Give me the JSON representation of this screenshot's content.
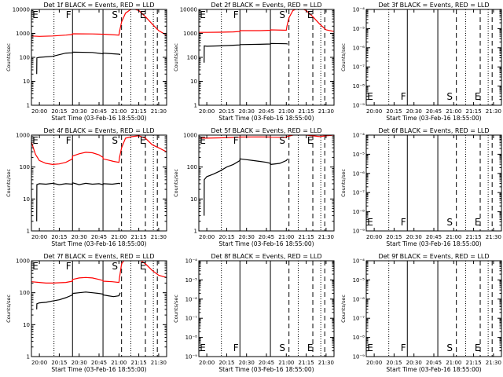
{
  "figure": {
    "x_axis_label": "Start Time (03-Feb-16 18:55:00)",
    "y_axis_label": "Counts/sec",
    "x_ticks": [
      "20:00",
      "20:15",
      "20:30",
      "20:45",
      "21:00",
      "21:15",
      "21:30"
    ],
    "x_tick_minutes": [
      0,
      15,
      30,
      45,
      60,
      75,
      90
    ],
    "x_range_minutes": [
      -6,
      96
    ],
    "x_origin_time": "20:00",
    "colors": {
      "events": "#000000",
      "lld": "#ff0000",
      "solid_line": "#000000"
    },
    "marker_lines_minutes": {
      "solid": [
        25,
        48
      ],
      "dotted": [
        11,
        69,
        86
      ],
      "dashed": [
        62,
        80,
        89
      ]
    }
  },
  "chart_data": [
    {
      "type": "line",
      "title": "Det 1f BLACK = Events, RED = LLD",
      "yscale": "log",
      "ylim": [
        1,
        10000
      ],
      "y_ticks": [
        "1",
        "10",
        "100",
        "1000",
        "10000"
      ],
      "y_tick_values": [
        1,
        10,
        100,
        1000,
        10000
      ],
      "segment_labels": [
        {
          "text": "E",
          "x": -3
        },
        {
          "text": "F",
          "x": 22
        },
        {
          "text": "S",
          "x": 57
        },
        {
          "text": "E",
          "x": 78
        }
      ],
      "series": [
        {
          "color": "#000000",
          "x": [
            -2,
            -1.9,
            0,
            10,
            20,
            25,
            25.1,
            40,
            48,
            48.1,
            60,
            61
          ],
          "y": [
            20,
            95,
            100,
            110,
            150,
            155,
            165,
            160,
            140,
            150,
            135,
            130
          ]
        },
        {
          "color": "#ff0000",
          "x": [
            -6,
            0,
            10,
            20,
            25,
            25.1,
            40,
            48,
            48.1,
            60,
            60.5,
            62,
            65,
            70,
            75,
            80,
            85,
            90,
            96
          ],
          "y": [
            780,
            750,
            780,
            850,
            900,
            960,
            950,
            920,
            930,
            850,
            1200,
            3000,
            7000,
            11000,
            9000,
            5000,
            2500,
            1300,
            850
          ]
        }
      ]
    },
    {
      "type": "line",
      "title": "Det 2f BLACK = Events, RED = LLD",
      "yscale": "log",
      "ylim": [
        1,
        10000
      ],
      "y_ticks": [
        "1",
        "10",
        "100",
        "1000",
        "10000"
      ],
      "y_tick_values": [
        1,
        10,
        100,
        1000,
        10000
      ],
      "segment_labels": [
        {
          "text": "E",
          "x": -3
        },
        {
          "text": "F",
          "x": 22
        },
        {
          "text": "S",
          "x": 57
        },
        {
          "text": "E",
          "x": 78
        }
      ],
      "series": [
        {
          "color": "#000000",
          "x": [
            -2,
            -1.9,
            0,
            10,
            20,
            25,
            25.1,
            40,
            48,
            48.1,
            60,
            61
          ],
          "y": [
            60,
            300,
            290,
            300,
            320,
            330,
            340,
            350,
            360,
            380,
            370,
            360
          ]
        },
        {
          "color": "#ff0000",
          "x": [
            -6,
            0,
            10,
            20,
            25,
            25.1,
            40,
            48,
            48.1,
            60,
            60.5,
            62,
            65,
            70,
            75,
            80,
            85,
            90,
            96
          ],
          "y": [
            1100,
            1100,
            1120,
            1150,
            1200,
            1300,
            1300,
            1350,
            1400,
            1350,
            2000,
            4500,
            9000,
            12000,
            9000,
            5000,
            2500,
            1400,
            1200
          ]
        }
      ]
    },
    {
      "type": "line",
      "title": "Det 3f BLACK = Events, RED = LLD",
      "yscale": "log",
      "ylim": [
        1e-09,
        0.0001
      ],
      "y_ticks": [
        "10⁻⁹",
        "10⁻⁸",
        "10⁻⁷",
        "10⁻⁶",
        "10⁻⁵",
        "10⁻⁴"
      ],
      "y_tick_values": [
        1e-09,
        1e-08,
        1e-07,
        1e-06,
        1e-05,
        0.0001
      ],
      "segment_labels": [
        {
          "text": "E",
          "x": -3
        },
        {
          "text": "F",
          "x": 22
        },
        {
          "text": "S",
          "x": 57
        },
        {
          "text": "E",
          "x": 78
        }
      ],
      "series": []
    },
    {
      "type": "line",
      "title": "Det 4f BLACK = Events, RED = LLD",
      "yscale": "log",
      "ylim": [
        1,
        1000
      ],
      "y_ticks": [
        "1",
        "10",
        "100",
        "1000"
      ],
      "y_tick_values": [
        1,
        10,
        100,
        1000
      ],
      "segment_labels": [
        {
          "text": "E",
          "x": -3
        },
        {
          "text": "F",
          "x": 22
        },
        {
          "text": "S",
          "x": 57
        },
        {
          "text": "E",
          "x": 78
        }
      ],
      "series": [
        {
          "color": "#000000",
          "x": [
            -2,
            -1.9,
            0,
            5,
            10,
            15,
            20,
            25,
            25.1,
            30,
            35,
            40,
            45,
            48,
            48.1,
            55,
            60,
            61
          ],
          "y": [
            2,
            28,
            30,
            29,
            31,
            28,
            30,
            29,
            32,
            28,
            31,
            29,
            30,
            28,
            30,
            29,
            31,
            30
          ]
        },
        {
          "color": "#ff0000",
          "x": [
            -6,
            -3,
            0,
            5,
            10,
            15,
            20,
            25,
            25.1,
            30,
            35,
            40,
            45,
            48,
            48.1,
            52,
            56,
            60,
            60.5,
            62,
            65,
            70,
            75,
            80,
            85,
            90,
            96
          ],
          "y": [
            600,
            250,
            160,
            130,
            120,
            125,
            140,
            180,
            220,
            260,
            290,
            280,
            240,
            200,
            180,
            165,
            150,
            140,
            200,
            400,
            800,
            900,
            950,
            800,
            500,
            400,
            300
          ]
        }
      ]
    },
    {
      "type": "line",
      "title": "Det 5f BLACK = Events, RED = LLD",
      "yscale": "log",
      "ylim": [
        1,
        1000
      ],
      "y_ticks": [
        "1",
        "10",
        "100",
        "1000"
      ],
      "y_tick_values": [
        1,
        10,
        100,
        1000
      ],
      "segment_labels": [
        {
          "text": "E",
          "x": -3
        },
        {
          "text": "F",
          "x": 22
        },
        {
          "text": "S",
          "x": 57
        },
        {
          "text": "E",
          "x": 78
        }
      ],
      "series": [
        {
          "color": "#000000",
          "x": [
            -2,
            -1.9,
            0,
            5,
            10,
            15,
            20,
            25,
            25.1,
            30,
            35,
            40,
            45,
            48,
            48.1,
            55,
            60,
            61
          ],
          "y": [
            3,
            40,
            50,
            60,
            75,
            100,
            120,
            160,
            180,
            170,
            160,
            150,
            140,
            130,
            120,
            130,
            160,
            180
          ]
        },
        {
          "color": "#ff0000",
          "x": [
            -6,
            0,
            10,
            20,
            25,
            25.1,
            40,
            48,
            48.1,
            60,
            60.5,
            65,
            70,
            75,
            80,
            85,
            90,
            96
          ],
          "y": [
            800,
            800,
            820,
            850,
            860,
            870,
            880,
            870,
            860,
            850,
            900,
            1000,
            1100,
            1000,
            950,
            900,
            950,
            1000
          ]
        }
      ]
    },
    {
      "type": "line",
      "title": "Det 6f BLACK = Events, RED = LLD",
      "yscale": "log",
      "ylim": [
        1e-09,
        0.0001
      ],
      "y_ticks": [
        "10⁻⁹",
        "10⁻⁸",
        "10⁻⁷",
        "10⁻⁶",
        "10⁻⁵",
        "10⁻⁴"
      ],
      "y_tick_values": [
        1e-09,
        1e-08,
        1e-07,
        1e-06,
        1e-05,
        0.0001
      ],
      "segment_labels": [
        {
          "text": "E",
          "x": -3
        },
        {
          "text": "F",
          "x": 22
        },
        {
          "text": "S",
          "x": 57
        },
        {
          "text": "E",
          "x": 78
        }
      ],
      "series": []
    },
    {
      "type": "line",
      "title": "Det 7f BLACK = Events, RED = LLD",
      "yscale": "log",
      "ylim": [
        1,
        1000
      ],
      "y_ticks": [
        "1",
        "10",
        "100",
        "1000"
      ],
      "y_tick_values": [
        1,
        10,
        100,
        1000
      ],
      "segment_labels": [
        {
          "text": "E",
          "x": -3
        },
        {
          "text": "F",
          "x": 22
        },
        {
          "text": "S",
          "x": 57
        },
        {
          "text": "E",
          "x": 78
        }
      ],
      "series": [
        {
          "color": "#000000",
          "x": [
            -2,
            -1.9,
            0,
            5,
            10,
            15,
            20,
            25,
            25.1,
            30,
            35,
            40,
            45,
            48,
            48.1,
            52,
            56,
            60,
            61
          ],
          "y": [
            30,
            45,
            48,
            50,
            55,
            60,
            70,
            85,
            95,
            100,
            105,
            100,
            95,
            90,
            85,
            80,
            75,
            80,
            100
          ]
        },
        {
          "color": "#ff0000",
          "x": [
            -6,
            0,
            5,
            10,
            15,
            20,
            25,
            25.1,
            30,
            35,
            40,
            45,
            48,
            48.1,
            55,
            60,
            60.5,
            62,
            65,
            70,
            75,
            80,
            85,
            90,
            96
          ],
          "y": [
            220,
            210,
            200,
            200,
            205,
            210,
            230,
            260,
            290,
            300,
            290,
            260,
            240,
            230,
            220,
            210,
            300,
            800,
            1200,
            1300,
            1100,
            800,
            500,
            350,
            300
          ]
        }
      ]
    },
    {
      "type": "line",
      "title": "Det 8f BLACK = Events, RED = LLD",
      "yscale": "log",
      "ylim": [
        1e-09,
        0.0001
      ],
      "y_ticks": [
        "10⁻⁹",
        "10⁻⁸",
        "10⁻⁷",
        "10⁻⁶",
        "10⁻⁵",
        "10⁻⁴"
      ],
      "y_tick_values": [
        1e-09,
        1e-08,
        1e-07,
        1e-06,
        1e-05,
        0.0001
      ],
      "segment_labels": [
        {
          "text": "E",
          "x": -3
        },
        {
          "text": "F",
          "x": 22
        },
        {
          "text": "S",
          "x": 57
        },
        {
          "text": "E",
          "x": 78
        }
      ],
      "series": []
    },
    {
      "type": "line",
      "title": "Det 9f BLACK = Events, RED = LLD",
      "yscale": "log",
      "ylim": [
        1e-09,
        0.0001
      ],
      "y_ticks": [
        "10⁻⁹",
        "10⁻⁸",
        "10⁻⁷",
        "10⁻⁶",
        "10⁻⁵",
        "10⁻⁴"
      ],
      "y_tick_values": [
        1e-09,
        1e-08,
        1e-07,
        1e-06,
        1e-05,
        0.0001
      ],
      "segment_labels": [
        {
          "text": "E",
          "x": -3
        },
        {
          "text": "F",
          "x": 22
        },
        {
          "text": "S",
          "x": 57
        },
        {
          "text": "E",
          "x": 78
        }
      ],
      "series": []
    }
  ]
}
